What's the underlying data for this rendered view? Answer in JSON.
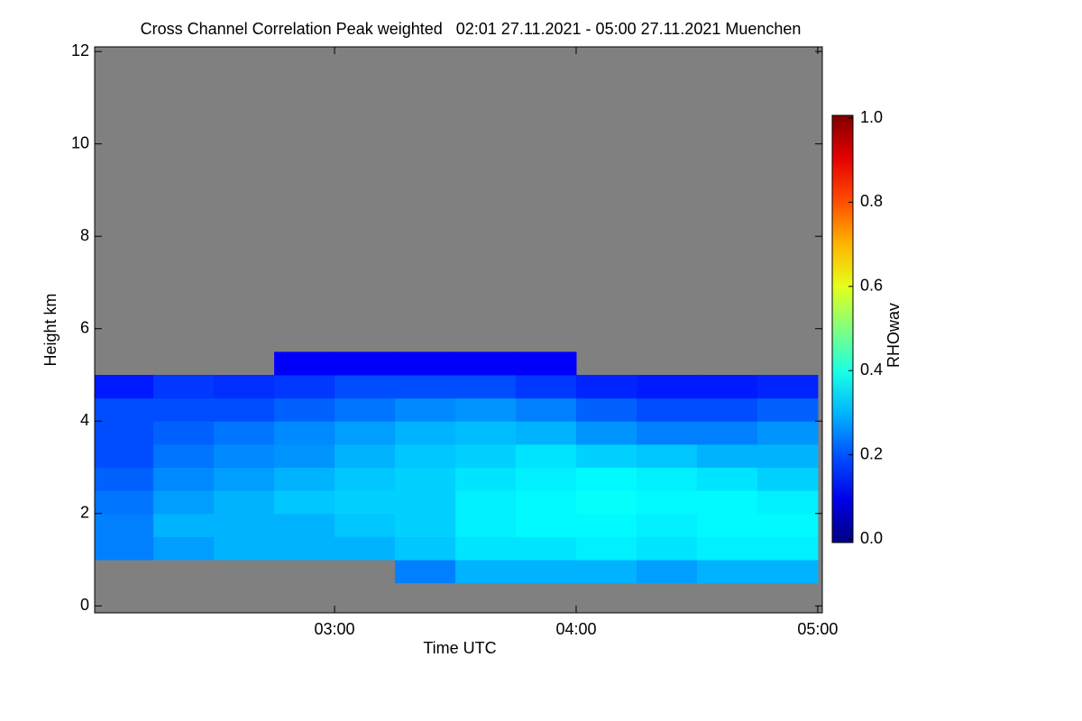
{
  "chart_data": {
    "type": "heatmap",
    "title": "Cross Channel Correlation Peak weighted   02:01 27.11.2021 - 05:00 27.11.2021 Muenchen",
    "x_label": "Time UTC",
    "y_label": "Height km",
    "colorbar_label": "RHOwav",
    "x": [
      2.0,
      2.25,
      2.5,
      2.75,
      3.0,
      3.25,
      3.5,
      3.75,
      4.0,
      4.25,
      4.5,
      4.75,
      5.0
    ],
    "y": [
      0,
      0.5,
      1.0,
      1.5,
      2.0,
      2.5,
      3.0,
      3.5,
      4.0,
      4.5,
      5.0,
      5.5,
      6.0
    ],
    "z": [
      [
        null,
        null,
        null,
        null,
        null,
        null,
        null,
        null,
        null,
        null,
        null,
        null
      ],
      [
        null,
        null,
        null,
        null,
        null,
        0.25,
        0.3,
        0.3,
        0.3,
        0.28,
        0.3,
        0.3
      ],
      [
        0.25,
        0.28,
        0.3,
        0.3,
        0.3,
        0.32,
        0.35,
        0.35,
        0.36,
        0.35,
        0.36,
        0.36
      ],
      [
        0.25,
        0.3,
        0.3,
        0.3,
        0.32,
        0.33,
        0.36,
        0.37,
        0.37,
        0.36,
        0.37,
        0.37
      ],
      [
        0.24,
        0.28,
        0.3,
        0.32,
        0.33,
        0.33,
        0.36,
        0.37,
        0.38,
        0.37,
        0.37,
        0.36
      ],
      [
        0.22,
        0.26,
        0.28,
        0.3,
        0.32,
        0.33,
        0.35,
        0.36,
        0.37,
        0.36,
        0.35,
        0.33
      ],
      [
        0.2,
        0.24,
        0.26,
        0.27,
        0.3,
        0.32,
        0.33,
        0.35,
        0.33,
        0.32,
        0.3,
        0.3
      ],
      [
        0.2,
        0.22,
        0.24,
        0.26,
        0.28,
        0.3,
        0.31,
        0.3,
        0.27,
        0.25,
        0.25,
        0.27
      ],
      [
        0.2,
        0.2,
        0.2,
        0.22,
        0.24,
        0.26,
        0.27,
        0.25,
        0.22,
        0.2,
        0.2,
        0.22
      ],
      [
        0.15,
        0.18,
        0.17,
        0.18,
        0.2,
        0.2,
        0.2,
        0.18,
        0.16,
        0.15,
        0.15,
        0.16
      ],
      [
        null,
        null,
        null,
        0.12,
        0.12,
        0.12,
        0.12,
        0.12,
        null,
        null,
        null,
        null
      ],
      [
        null,
        null,
        null,
        null,
        null,
        null,
        null,
        null,
        null,
        null,
        null,
        null
      ]
    ],
    "xlim": [
      2.007,
      5.019
    ],
    "xticks": [
      {
        "value": 3,
        "label": "03:00"
      },
      {
        "value": 4,
        "label": "04:00"
      },
      {
        "value": 5,
        "label": "05:00"
      }
    ],
    "ylim": [
      -0.15,
      12.1
    ],
    "yticks": [
      0,
      2,
      4,
      6,
      8,
      10,
      12
    ],
    "clim": [
      0,
      1
    ],
    "cticks": [
      {
        "value": 0,
        "label": "0.0"
      },
      {
        "value": 0.2,
        "label": "0.2"
      },
      {
        "value": 0.4,
        "label": "0.4"
      },
      {
        "value": 0.6,
        "label": "0.6"
      },
      {
        "value": 0.8,
        "label": "0.8"
      },
      {
        "value": 1,
        "label": "1.0"
      }
    ],
    "colormap": "jet",
    "nan_color": "#808080"
  }
}
